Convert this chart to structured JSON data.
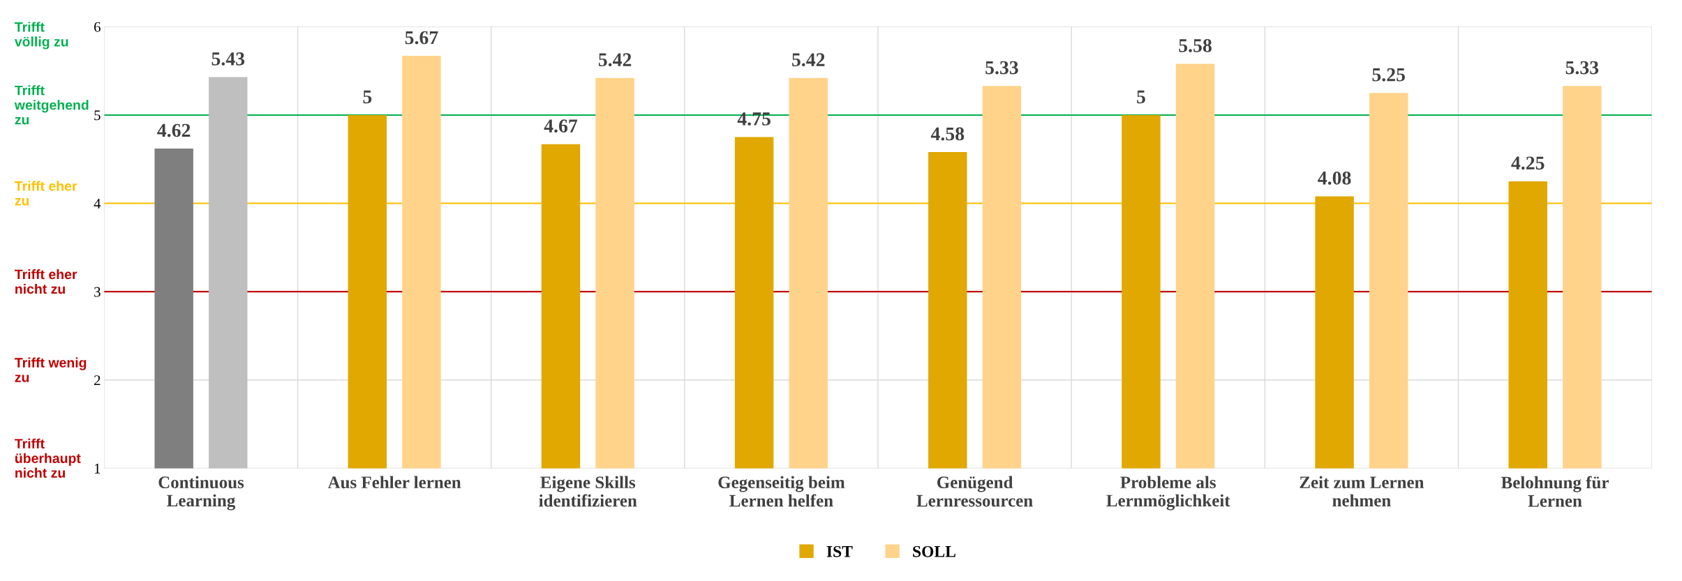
{
  "chart_data": {
    "type": "bar",
    "categories": [
      "Continuous Learning",
      "Aus Fehler lernen",
      "Eigene Skills identifizieren",
      "Gegenseitig beim Lernen helfen",
      "Genügend Lernressourcen",
      "Probleme als Lernmöglichkeit",
      "Zeit zum Lernen nehmen",
      "Belohnung für Lernen"
    ],
    "series": [
      {
        "name": "IST",
        "color": "#e0a800",
        "colors": [
          "#7f7f7f",
          "#e0a800",
          "#e0a800",
          "#e0a800",
          "#e0a800",
          "#e0a800",
          "#e0a800",
          "#e0a800"
        ],
        "values": [
          4.62,
          5,
          4.67,
          4.75,
          4.58,
          5,
          4.08,
          4.25
        ]
      },
      {
        "name": "SOLL",
        "color": "#ffd38a",
        "colors": [
          "#bfbfbf",
          "#ffd38a",
          "#ffd38a",
          "#ffd38a",
          "#ffd38a",
          "#ffd38a",
          "#ffd38a",
          "#ffd38a"
        ],
        "values": [
          5.43,
          5.67,
          5.42,
          5.42,
          5.33,
          5.58,
          5.25,
          5.33
        ]
      }
    ],
    "ylim": [
      1,
      6
    ],
    "yticks": [
      1,
      2,
      3,
      4,
      5,
      6
    ],
    "grid": true,
    "legend": "bottom",
    "data_labels": true,
    "ref_lines": [
      {
        "axis": "y",
        "value": 5,
        "color": "#00b050"
      },
      {
        "axis": "y",
        "value": 4,
        "color": "#ffc000"
      },
      {
        "axis": "y",
        "value": 3,
        "color": "#c00000"
      }
    ],
    "annotations": [
      "Trifft völlig zu",
      "Trifft weitgehend zu",
      "Trifft eher zu",
      "Trifft eher nicht zu",
      "Trifft wenig zu",
      "Trifft überhaupt nicht zu"
    ]
  }
}
